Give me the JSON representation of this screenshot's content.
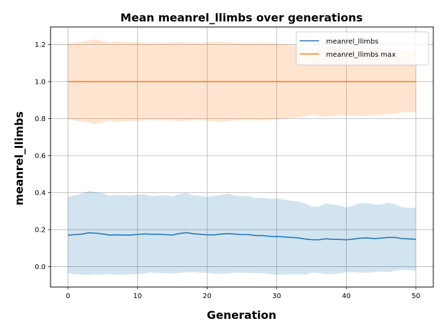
{
  "chart_data": {
    "type": "line",
    "title": "Mean meanrel_llimbs over generations",
    "xlabel": "Generation",
    "ylabel": "meanrel_llimbs",
    "xlim": [
      -2.5,
      52.5
    ],
    "ylim": [
      -0.11,
      1.295
    ],
    "xticks": [
      0,
      10,
      20,
      30,
      40,
      50
    ],
    "yticks": [
      0.0,
      0.2,
      0.4,
      0.6,
      0.8,
      1.0,
      1.2
    ],
    "grid": true,
    "legend_position": "top-right",
    "x": [
      0,
      1,
      2,
      3,
      4,
      5,
      6,
      7,
      8,
      9,
      10,
      11,
      12,
      13,
      14,
      15,
      16,
      17,
      18,
      19,
      20,
      21,
      22,
      23,
      24,
      25,
      26,
      27,
      28,
      29,
      30,
      31,
      32,
      33,
      34,
      35,
      36,
      37,
      38,
      39,
      40,
      41,
      42,
      43,
      44,
      45,
      46,
      47,
      48,
      49,
      50
    ],
    "series": [
      {
        "name": "meanrel_llimbs",
        "color": "#1f77b4",
        "band_color": "#1f77b4",
        "values": [
          0.17,
          0.173,
          0.176,
          0.183,
          0.181,
          0.177,
          0.171,
          0.172,
          0.171,
          0.171,
          0.174,
          0.177,
          0.175,
          0.175,
          0.173,
          0.171,
          0.179,
          0.184,
          0.178,
          0.175,
          0.172,
          0.172,
          0.176,
          0.179,
          0.176,
          0.174,
          0.173,
          0.168,
          0.168,
          0.164,
          0.163,
          0.161,
          0.158,
          0.156,
          0.15,
          0.146,
          0.145,
          0.151,
          0.148,
          0.147,
          0.145,
          0.149,
          0.154,
          0.155,
          0.152,
          0.154,
          0.158,
          0.158,
          0.152,
          0.15,
          0.148
        ],
        "upper": [
          0.378,
          0.385,
          0.395,
          0.41,
          0.402,
          0.398,
          0.383,
          0.388,
          0.387,
          0.384,
          0.389,
          0.392,
          0.381,
          0.384,
          0.385,
          0.38,
          0.392,
          0.399,
          0.385,
          0.383,
          0.377,
          0.382,
          0.388,
          0.395,
          0.384,
          0.381,
          0.382,
          0.37,
          0.372,
          0.367,
          0.369,
          0.364,
          0.356,
          0.354,
          0.342,
          0.325,
          0.325,
          0.342,
          0.336,
          0.331,
          0.32,
          0.328,
          0.343,
          0.343,
          0.335,
          0.336,
          0.345,
          0.338,
          0.321,
          0.318,
          0.318
        ],
        "lower": [
          -0.035,
          -0.04,
          -0.043,
          -0.045,
          -0.041,
          -0.043,
          -0.039,
          -0.044,
          -0.043,
          -0.041,
          -0.04,
          -0.037,
          -0.031,
          -0.034,
          -0.035,
          -0.038,
          -0.033,
          -0.031,
          -0.029,
          -0.033,
          -0.033,
          -0.037,
          -0.038,
          -0.037,
          -0.032,
          -0.033,
          -0.035,
          -0.034,
          -0.036,
          -0.039,
          -0.043,
          -0.042,
          -0.041,
          -0.041,
          -0.043,
          -0.033,
          -0.035,
          -0.04,
          -0.041,
          -0.036,
          -0.03,
          -0.03,
          -0.033,
          -0.032,
          -0.029,
          -0.026,
          -0.029,
          -0.021,
          -0.017,
          -0.018,
          -0.022
        ]
      },
      {
        "name": "meanrel_llimbs max",
        "color": "#ff7f0e",
        "band_color": "#ff7f0e",
        "values": [
          1.0,
          1.0,
          1.0,
          1.0,
          1.0,
          1.0,
          1.0,
          1.0,
          1.0,
          1.0,
          1.0,
          1.0,
          1.0,
          1.0,
          1.0,
          1.0,
          1.0,
          1.0,
          1.0,
          1.0,
          1.0,
          1.0,
          1.0,
          1.0,
          1.0,
          1.0,
          1.0,
          1.0,
          1.0,
          1.0,
          1.0,
          1.0,
          1.0,
          1.0,
          1.0,
          1.0,
          1.0,
          1.0,
          1.0,
          1.0,
          1.0,
          1.0,
          1.0,
          1.0,
          1.0,
          1.0,
          1.0,
          1.0,
          1.0,
          1.0,
          1.0
        ],
        "upper": [
          1.205,
          1.21,
          1.216,
          1.222,
          1.228,
          1.22,
          1.212,
          1.218,
          1.214,
          1.212,
          1.214,
          1.21,
          1.208,
          1.212,
          1.209,
          1.211,
          1.214,
          1.21,
          1.211,
          1.208,
          1.212,
          1.214,
          1.216,
          1.213,
          1.21,
          1.209,
          1.207,
          1.21,
          1.209,
          1.208,
          1.206,
          1.201,
          1.196,
          1.193,
          1.188,
          1.181,
          1.185,
          1.191,
          1.186,
          1.183,
          1.182,
          1.186,
          1.185,
          1.184,
          1.183,
          1.179,
          1.176,
          1.172,
          1.168,
          1.166,
          1.166
        ],
        "lower": [
          0.795,
          0.79,
          0.784,
          0.778,
          0.772,
          0.78,
          0.788,
          0.782,
          0.786,
          0.788,
          0.786,
          0.79,
          0.792,
          0.788,
          0.791,
          0.789,
          0.786,
          0.79,
          0.789,
          0.792,
          0.788,
          0.786,
          0.784,
          0.787,
          0.79,
          0.791,
          0.793,
          0.79,
          0.791,
          0.792,
          0.794,
          0.799,
          0.804,
          0.807,
          0.812,
          0.819,
          0.815,
          0.809,
          0.814,
          0.817,
          0.818,
          0.814,
          0.815,
          0.816,
          0.817,
          0.821,
          0.824,
          0.828,
          0.832,
          0.834,
          0.834
        ]
      }
    ]
  }
}
